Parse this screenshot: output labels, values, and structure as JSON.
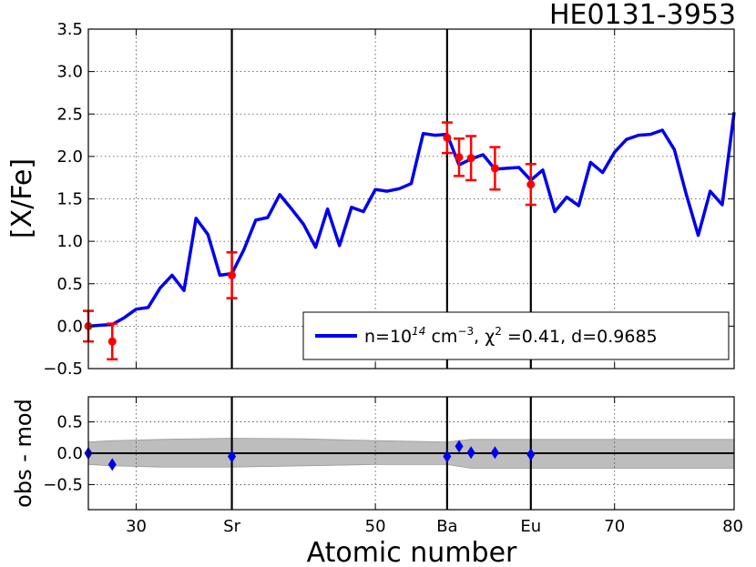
{
  "title": "HE0131-3953",
  "colors": {
    "model_line": "#0000ee",
    "observed": "#ff0000",
    "residual_marker": "#0000ee",
    "uncertainty_band": "#bdbdbd",
    "frame": "#000000"
  },
  "chart_data": [
    {
      "type": "line",
      "panel": "top",
      "title": "HE0131-3953",
      "xlabel": "",
      "ylabel": "[X/Fe]",
      "xlim": [
        26,
        80
      ],
      "ylim": [
        -0.5,
        3.5
      ],
      "grid": true,
      "legend_position": "lower-right",
      "yticks": [
        "−0.5",
        "0.0",
        "0.5",
        "1.0",
        "1.5",
        "2.0",
        "2.5",
        "3.0",
        "3.5"
      ],
      "ytick_values": [
        -0.5,
        0.0,
        0.5,
        1.0,
        1.5,
        2.0,
        2.5,
        3.0,
        3.5
      ],
      "marker_lines": [
        {
          "x": 38,
          "label": "Sr"
        },
        {
          "x": 56,
          "label": "Ba"
        },
        {
          "x": 63,
          "label": "Eu"
        }
      ],
      "series": [
        {
          "legend_main": "n=10",
          "legend_exp": "14",
          "legend_unit": " cm",
          "legend_unit_exp": "−3",
          "legend_chi": ", χ",
          "legend_chi_exp": "2",
          "legend_rest": " =0.41, d=0.9685",
          "style": "line",
          "x": [
            26,
            27,
            28,
            29,
            30,
            31,
            32,
            33,
            34,
            35,
            36,
            37,
            38,
            39,
            40,
            41,
            42,
            43,
            44,
            45,
            46,
            47,
            48,
            49,
            50,
            51,
            52,
            53,
            54,
            55,
            56,
            57,
            58,
            59,
            60,
            61,
            62,
            63,
            64,
            65,
            66,
            67,
            68,
            69,
            70,
            71,
            72,
            73,
            74,
            75,
            76,
            77,
            78,
            79,
            80
          ],
          "y": [
            0.0,
            0.01,
            0.02,
            0.1,
            0.2,
            0.22,
            0.45,
            0.6,
            0.42,
            1.27,
            1.08,
            0.6,
            0.62,
            0.9,
            1.25,
            1.28,
            1.55,
            1.38,
            1.2,
            0.93,
            1.38,
            0.95,
            1.4,
            1.35,
            1.61,
            1.59,
            1.62,
            1.68,
            2.27,
            2.25,
            2.26,
            1.9,
            1.97,
            2.02,
            1.85,
            1.86,
            1.87,
            1.72,
            1.84,
            1.35,
            1.52,
            1.42,
            1.93,
            1.81,
            2.05,
            2.2,
            2.25,
            2.26,
            2.31,
            2.08,
            1.55,
            1.07,
            1.59,
            1.43,
            2.52
          ]
        },
        {
          "style": "errorbar",
          "points": [
            {
              "x": 26,
              "y": 0.0,
              "err": 0.18
            },
            {
              "x": 28,
              "y": -0.18,
              "err": 0.21
            },
            {
              "x": 38,
              "y": 0.6,
              "err": 0.27
            },
            {
              "x": 56,
              "y": 2.22,
              "err": 0.18
            },
            {
              "x": 57,
              "y": 1.99,
              "err": 0.22
            },
            {
              "x": 58,
              "y": 1.98,
              "err": 0.26
            },
            {
              "x": 60,
              "y": 1.86,
              "err": 0.25
            },
            {
              "x": 63,
              "y": 1.67,
              "err": 0.24
            }
          ]
        }
      ]
    },
    {
      "type": "scatter",
      "panel": "bottom",
      "xlabel": "Atomic number",
      "ylabel": "obs - mod",
      "xlim": [
        26,
        80
      ],
      "ylim": [
        -0.9,
        0.9
      ],
      "grid": true,
      "yticks": [
        "−0.5",
        "0.0",
        "0.5"
      ],
      "ytick_values": [
        -0.5,
        0.0,
        0.5
      ],
      "xticks": [
        {
          "x": 30,
          "label": "30"
        },
        {
          "x": 38,
          "label": "Sr"
        },
        {
          "x": 50,
          "label": "50"
        },
        {
          "x": 56,
          "label": "Ba"
        },
        {
          "x": 63,
          "label": "Eu"
        },
        {
          "x": 70,
          "label": "70"
        },
        {
          "x": 80,
          "label": "80"
        }
      ],
      "zero_line": 0.0,
      "band": {
        "x": [
          26,
          28,
          32,
          38,
          44,
          50,
          56,
          57,
          58,
          60,
          63,
          70,
          80
        ],
        "upper": [
          0.18,
          0.2,
          0.22,
          0.24,
          0.23,
          0.2,
          0.18,
          0.2,
          0.22,
          0.22,
          0.22,
          0.22,
          0.22
        ],
        "lower": [
          -0.18,
          -0.2,
          -0.22,
          -0.22,
          -0.2,
          -0.18,
          -0.18,
          -0.21,
          -0.24,
          -0.24,
          -0.24,
          -0.24,
          -0.24
        ]
      },
      "points": [
        {
          "x": 26,
          "y": 0.0
        },
        {
          "x": 28,
          "y": -0.18
        },
        {
          "x": 38,
          "y": -0.05
        },
        {
          "x": 56,
          "y": -0.05
        },
        {
          "x": 57,
          "y": 0.11
        },
        {
          "x": 58,
          "y": 0.01
        },
        {
          "x": 60,
          "y": 0.01
        },
        {
          "x": 63,
          "y": -0.02
        }
      ]
    }
  ]
}
